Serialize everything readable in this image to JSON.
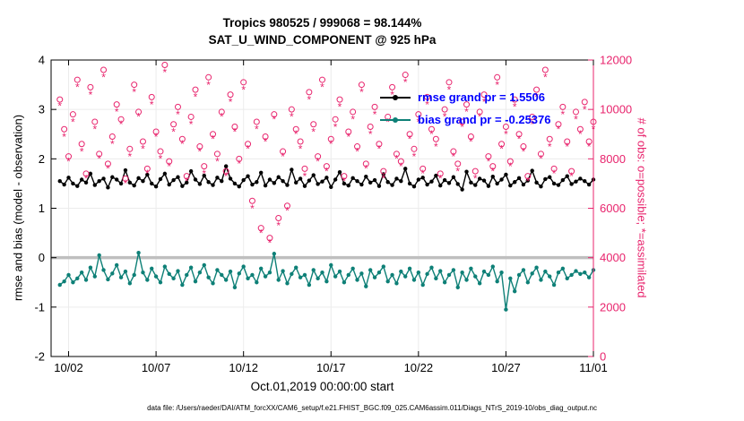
{
  "titles": {
    "line1": "Tropics 980525 / 999068 = 98.144%",
    "line2": "SAT_U_WIND_COMPONENT @ 925 hPa"
  },
  "legend": {
    "items": [
      {
        "label": "rmse grand pr = 1.5506",
        "sample_color": "#000000"
      },
      {
        "label": "bias grand pr = -0.25376",
        "sample_color": "#0e8077"
      }
    ],
    "text_color": "#0000ff"
  },
  "axes": {
    "ylabel_left": "rmse and bias (model - observation)",
    "ylabel_right": "# of obs: o=possible; *=assimilated",
    "xlabel": "Oct.01,2019 00:00:00 start"
  },
  "caption": "data file: /Users/raeder/DAI/ATM_forcXX/CAM6_setup/f.e21.FHIST_BGC.f09_025.CAM6assim.011/Diags_NTrS_2019-10/obs_diag_output.nc",
  "colors": {
    "obs_pink": "#e8246d",
    "bias_teal": "#0e8077",
    "rmse_black": "#000000",
    "zero_line_gray": "#bfbfbf",
    "grid_gray": "#ececec"
  },
  "chart_data": {
    "type": "line",
    "title": "Tropics 980525 / 999068 = 98.144% | SAT_U_WIND_COMPONENT @ 925 hPa",
    "xlabel": "Oct.01,2019 00:00:00 start",
    "xlim": [
      0,
      31
    ],
    "ylim_left": [
      -2,
      4
    ],
    "ylim_right": [
      0,
      12000
    ],
    "x_start": 0.5,
    "x_step": 0.25,
    "x_ticks": [
      {
        "day": 1,
        "label": "10/02"
      },
      {
        "day": 6,
        "label": "10/07"
      },
      {
        "day": 11,
        "label": "10/12"
      },
      {
        "day": 16,
        "label": "10/17"
      },
      {
        "day": 21,
        "label": "10/22"
      },
      {
        "day": 26,
        "label": "10/27"
      },
      {
        "day": 31,
        "label": "11/01"
      }
    ],
    "left_ticks": [
      -2,
      -1,
      0,
      1,
      2,
      3,
      4
    ],
    "right_ticks": [
      0,
      2000,
      4000,
      6000,
      8000,
      10000,
      12000
    ],
    "series": [
      {
        "name": "bias",
        "axis": "left",
        "color": "#0e8077",
        "marker": "circle-filled",
        "line": true,
        "grand_value": -0.25376,
        "values": [
          -0.55,
          -0.48,
          -0.35,
          -0.5,
          -0.42,
          -0.3,
          -0.45,
          -0.2,
          -0.38,
          0.05,
          -0.25,
          -0.44,
          -0.32,
          -0.15,
          -0.4,
          -0.28,
          -0.52,
          -0.35,
          0.1,
          -0.3,
          -0.45,
          -0.22,
          -0.38,
          -0.5,
          -0.18,
          -0.33,
          -0.42,
          -0.27,
          -0.55,
          -0.35,
          -0.2,
          -0.48,
          -0.3,
          -0.15,
          -0.4,
          -0.52,
          -0.25,
          -0.35,
          -0.45,
          -0.28,
          -0.6,
          -0.32,
          -0.18,
          -0.42,
          -0.35,
          -0.5,
          -0.22,
          -0.38,
          -0.3,
          0.08,
          -0.45,
          -0.27,
          -0.52,
          -0.33,
          -0.2,
          -0.4,
          -0.35,
          -0.55,
          -0.25,
          -0.42,
          -0.3,
          -0.48,
          -0.15,
          -0.38,
          -0.28,
          -0.5,
          -0.35,
          -0.22,
          -0.45,
          -0.32,
          -0.58,
          -0.25,
          -0.4,
          -0.3,
          -0.18,
          -0.48,
          -0.35,
          -0.52,
          -0.28,
          -0.38,
          -0.22,
          -0.45,
          -0.3,
          -0.55,
          -0.33,
          -0.2,
          -0.42,
          -0.27,
          -0.5,
          -0.35,
          -0.25,
          -0.6,
          -0.3,
          -0.45,
          -0.22,
          -0.38,
          -0.52,
          -0.28,
          -0.35,
          -0.18,
          -0.48,
          -0.3,
          -1.05,
          -0.42,
          -0.68,
          -0.35,
          -0.25,
          -0.5,
          -0.32,
          -0.2,
          -0.45,
          -0.28,
          -0.38,
          -0.55,
          -0.3,
          -0.22,
          -0.42,
          -0.35,
          -0.27,
          -0.33,
          -0.3,
          -0.4,
          -0.25
        ]
      },
      {
        "name": "rmse",
        "axis": "left",
        "color": "#000000",
        "marker": "circle-filled",
        "line": true,
        "grand_value": 1.5506,
        "values": [
          1.55,
          1.48,
          1.62,
          1.5,
          1.45,
          1.58,
          1.52,
          1.7,
          1.47,
          1.55,
          1.6,
          1.42,
          1.63,
          1.58,
          1.5,
          1.77,
          1.52,
          1.46,
          1.61,
          1.55,
          1.68,
          1.5,
          1.44,
          1.59,
          1.7,
          1.48,
          1.57,
          1.63,
          1.45,
          1.52,
          1.75,
          1.58,
          1.49,
          1.66,
          1.53,
          1.47,
          1.62,
          1.55,
          1.85,
          1.6,
          1.5,
          1.44,
          1.57,
          1.65,
          1.48,
          1.53,
          1.72,
          1.46,
          1.58,
          1.51,
          1.63,
          1.55,
          1.47,
          1.78,
          1.52,
          1.6,
          1.45,
          1.56,
          1.67,
          1.49,
          1.54,
          1.62,
          1.43,
          1.58,
          1.73,
          1.5,
          1.46,
          1.61,
          1.55,
          1.48,
          1.64,
          1.52,
          1.57,
          1.45,
          1.69,
          1.53,
          1.47,
          1.6,
          1.55,
          1.8,
          1.5,
          1.44,
          1.58,
          1.62,
          1.48,
          1.54,
          1.66,
          1.46,
          1.57,
          1.51,
          1.63,
          1.49,
          1.38,
          1.74,
          1.52,
          1.47,
          1.6,
          1.56,
          1.45,
          1.64,
          1.5,
          1.58,
          1.68,
          1.46,
          1.53,
          1.61,
          1.48,
          1.56,
          1.76,
          1.52,
          1.44,
          1.59,
          1.63,
          1.5,
          1.47,
          1.57,
          1.65,
          1.49,
          1.54,
          1.6,
          1.55,
          1.48,
          1.58
        ]
      },
      {
        "name": "possible",
        "axis": "right",
        "color": "#e8246d",
        "marker": "circle-open",
        "line": false,
        "values": [
          10400,
          9200,
          8100,
          9800,
          11200,
          8600,
          7400,
          10900,
          9500,
          8200,
          11600,
          7800,
          8900,
          10200,
          9600,
          7200,
          8400,
          11000,
          9900,
          8700,
          7600,
          10500,
          9100,
          8300,
          11800,
          7900,
          9400,
          10100,
          8800,
          7300,
          9700,
          10800,
          8500,
          7700,
          11300,
          9000,
          8200,
          9900,
          7500,
          10600,
          9300,
          8000,
          11100,
          8600,
          6300,
          9500,
          5200,
          8900,
          4800,
          9800,
          5600,
          8300,
          6100,
          10000,
          9200,
          8700,
          7600,
          10700,
          9400,
          8100,
          11200,
          7700,
          8800,
          9600,
          10400,
          7300,
          9100,
          9900,
          8500,
          11000,
          7800,
          9300,
          10100,
          8600,
          7500,
          9700,
          10900,
          8200,
          7900,
          11400,
          9000,
          8400,
          9800,
          7600,
          10500,
          9200,
          8800,
          7400,
          10000,
          11100,
          8300,
          7800,
          9500,
          10200,
          8900,
          7500,
          9900,
          10600,
          8100,
          7700,
          11300,
          8600,
          9300,
          7900,
          10400,
          9000,
          8500,
          7300,
          9700,
          10800,
          8200,
          11600,
          8800,
          7600,
          9400,
          10100,
          8700,
          7500,
          9900,
          9200,
          10300,
          8700,
          9500
        ]
      },
      {
        "name": "assimilated",
        "axis": "right",
        "color": "#e8246d",
        "marker": "asterisk",
        "line": false,
        "values": [
          10150,
          8900,
          7900,
          9500,
          10900,
          8300,
          7200,
          10600,
          9200,
          8000,
          11300,
          7600,
          8600,
          9900,
          9400,
          7000,
          8100,
          10700,
          9700,
          8400,
          7400,
          10200,
          8900,
          8000,
          11500,
          7700,
          9100,
          9800,
          8600,
          7100,
          9400,
          10500,
          8300,
          7400,
          11000,
          8800,
          7900,
          9700,
          7300,
          10300,
          9100,
          7800,
          10800,
          8400,
          6000,
          9200,
          5000,
          8700,
          4600,
          9600,
          5300,
          8100,
          5900,
          9700,
          9000,
          8400,
          7300,
          10400,
          9100,
          7900,
          10900,
          7500,
          8600,
          9300,
          10100,
          7100,
          8900,
          9600,
          8300,
          10700,
          7600,
          9000,
          9800,
          8400,
          7200,
          9500,
          10600,
          8000,
          7700,
          11100,
          8800,
          8100,
          9500,
          7400,
          10200,
          9000,
          8500,
          7200,
          9700,
          10800,
          8100,
          7500,
          9300,
          9900,
          8700,
          7200,
          9700,
          10300,
          7900,
          7500,
          11000,
          8400,
          9000,
          7700,
          10100,
          8800,
          8300,
          7100,
          9400,
          10500,
          8000,
          11300,
          8500,
          7400,
          9200,
          9800,
          8500,
          7300,
          9600,
          9000,
          10000,
          8500,
          9200
        ]
      }
    ]
  }
}
